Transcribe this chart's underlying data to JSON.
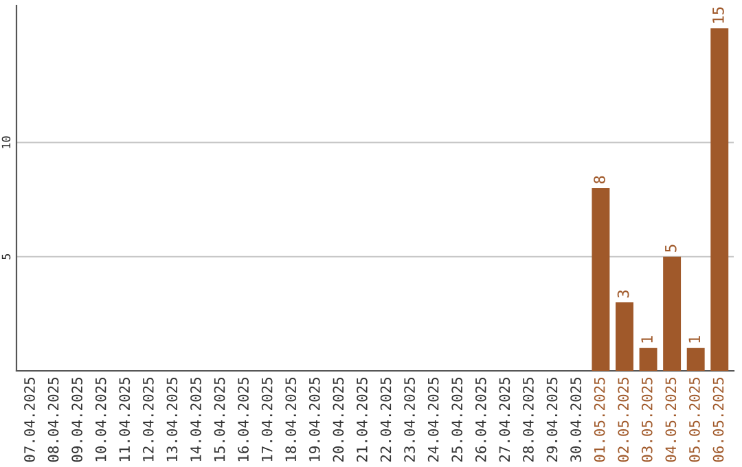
{
  "chart_data": {
    "type": "bar",
    "categories": [
      "07.04.2025",
      "08.04.2025",
      "09.04.2025",
      "10.04.2025",
      "11.04.2025",
      "12.04.2025",
      "13.04.2025",
      "14.04.2025",
      "15.04.2025",
      "16.04.2025",
      "17.04.2025",
      "18.04.2025",
      "19.04.2025",
      "20.04.2025",
      "21.04.2025",
      "22.04.2025",
      "23.04.2025",
      "24.04.2025",
      "25.04.2025",
      "26.04.2025",
      "27.04.2025",
      "28.04.2025",
      "29.04.2025",
      "30.04.2025",
      "01.05.2025",
      "02.05.2025",
      "03.05.2025",
      "04.05.2025",
      "05.05.2025",
      "06.05.2025"
    ],
    "values": [
      0,
      0,
      0,
      0,
      0,
      0,
      0,
      0,
      0,
      0,
      0,
      0,
      0,
      0,
      0,
      0,
      0,
      0,
      0,
      0,
      0,
      0,
      0,
      0,
      8,
      3,
      1,
      5,
      1,
      15
    ],
    "value_labels": [
      null,
      null,
      null,
      null,
      null,
      null,
      null,
      null,
      null,
      null,
      null,
      null,
      null,
      null,
      null,
      null,
      null,
      null,
      null,
      null,
      null,
      null,
      null,
      null,
      "8",
      "3",
      "1",
      "5",
      "1",
      "15"
    ],
    "color": "#a0592a",
    "ylim": [
      0,
      16
    ],
    "yticks": [
      5,
      10
    ],
    "grid": "y",
    "legend": false
  }
}
